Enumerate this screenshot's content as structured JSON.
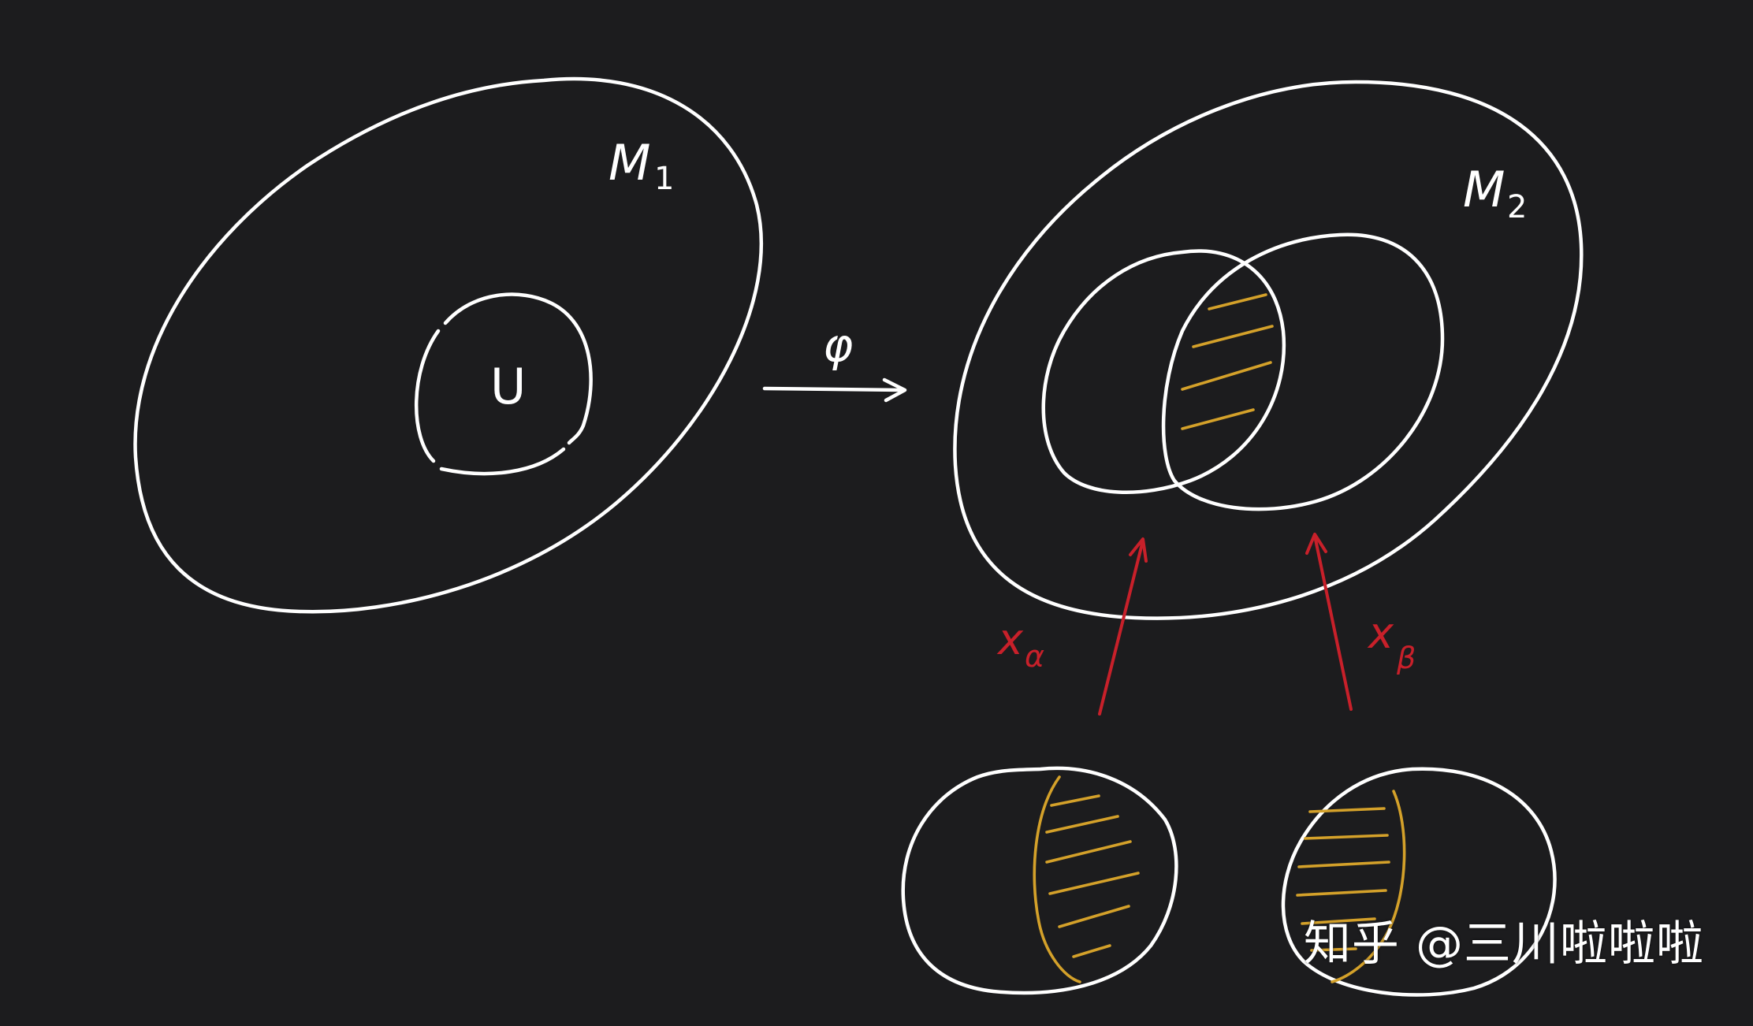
{
  "labels": {
    "M1": "M",
    "M1_sub": "1",
    "U": "U",
    "phi": "φ",
    "M2": "M",
    "M2_sub": "2",
    "x_alpha": "x",
    "x_alpha_sub": "α",
    "x_beta": "x",
    "x_beta_sub": "β"
  },
  "watermark": "知乎 @三川啦啦啦",
  "colors": {
    "background": "#1c1c1e",
    "stroke": "#ffffff",
    "arrow_red": "#c8202a",
    "hatch_gold": "#d4a12a"
  }
}
